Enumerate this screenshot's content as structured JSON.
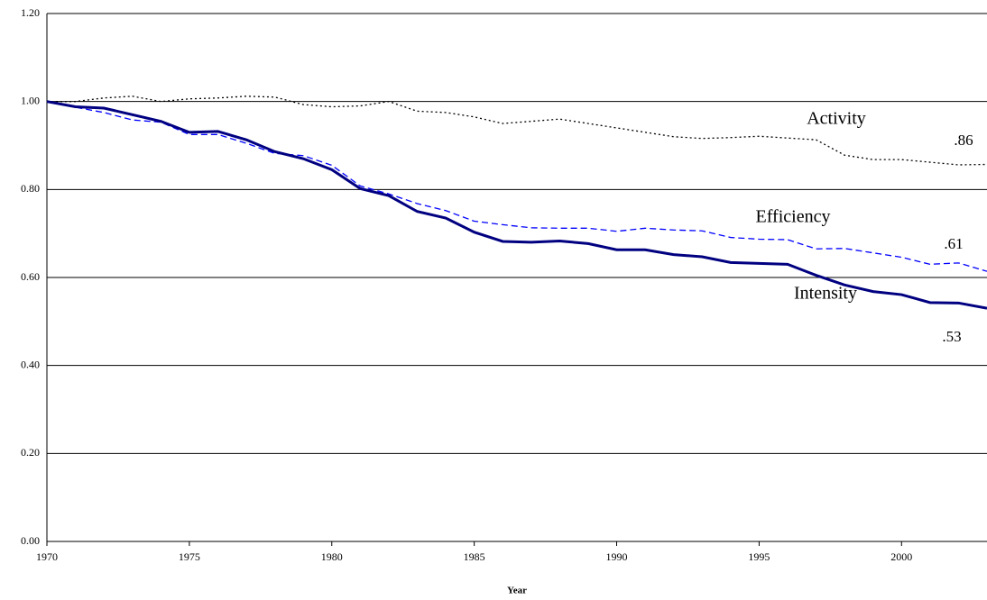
{
  "chart_data": {
    "type": "line",
    "x_label": "Year",
    "x": [
      1970,
      1971,
      1972,
      1973,
      1974,
      1975,
      1976,
      1977,
      1978,
      1979,
      1980,
      1981,
      1982,
      1983,
      1984,
      1985,
      1986,
      1987,
      1988,
      1989,
      1990,
      1991,
      1992,
      1993,
      1994,
      1995,
      1996,
      1997,
      1998,
      1999,
      2000,
      2001,
      2002,
      2003
    ],
    "xlim": [
      1970,
      2003
    ],
    "xticks": [
      1970,
      1975,
      1980,
      1985,
      1990,
      1995,
      2000
    ],
    "ylim": [
      0,
      1.2
    ],
    "yticks": [
      {
        "value": 0,
        "label": "0.00"
      },
      {
        "value": 0.2,
        "label": "0.20"
      },
      {
        "value": 0.4,
        "label": "0.40"
      },
      {
        "value": 0.6,
        "label": "0.60"
      },
      {
        "value": 0.8,
        "label": "0.80"
      },
      {
        "value": 1.0,
        "label": "1.00"
      },
      {
        "value": 1.2,
        "label": "1.20"
      }
    ],
    "grid": true,
    "series": [
      {
        "name": "Activity",
        "end_label": ".86",
        "color": "#000000",
        "style": "dotted",
        "values": [
          1.0,
          1.0,
          1.008,
          1.012,
          1.0,
          1.006,
          1.008,
          1.012,
          1.01,
          0.993,
          0.988,
          0.99,
          1.0,
          0.978,
          0.975,
          0.965,
          0.95,
          0.955,
          0.96,
          0.95,
          0.94,
          0.93,
          0.92,
          0.916,
          0.918,
          0.921,
          0.917,
          0.913,
          0.878,
          0.868,
          0.868,
          0.862,
          0.856,
          0.857
        ]
      },
      {
        "name": "Efficiency",
        "end_label": ".61",
        "color": "#0000ff",
        "style": "dashed",
        "values": [
          1.0,
          0.987,
          0.975,
          0.958,
          0.953,
          0.925,
          0.925,
          0.905,
          0.882,
          0.877,
          0.855,
          0.808,
          0.79,
          0.768,
          0.752,
          0.728,
          0.72,
          0.713,
          0.712,
          0.712,
          0.705,
          0.712,
          0.708,
          0.706,
          0.691,
          0.687,
          0.686,
          0.665,
          0.666,
          0.656,
          0.646,
          0.63,
          0.633,
          0.614
        ]
      },
      {
        "name": "Intensity",
        "end_label": ".53",
        "color": "#000080",
        "style": "solid",
        "values": [
          1.0,
          0.988,
          0.985,
          0.97,
          0.955,
          0.93,
          0.932,
          0.913,
          0.886,
          0.87,
          0.845,
          0.802,
          0.786,
          0.75,
          0.735,
          0.703,
          0.682,
          0.68,
          0.683,
          0.677,
          0.663,
          0.663,
          0.652,
          0.647,
          0.634,
          0.632,
          0.63,
          0.605,
          0.583,
          0.568,
          0.561,
          0.543,
          0.542,
          0.53
        ]
      }
    ]
  }
}
